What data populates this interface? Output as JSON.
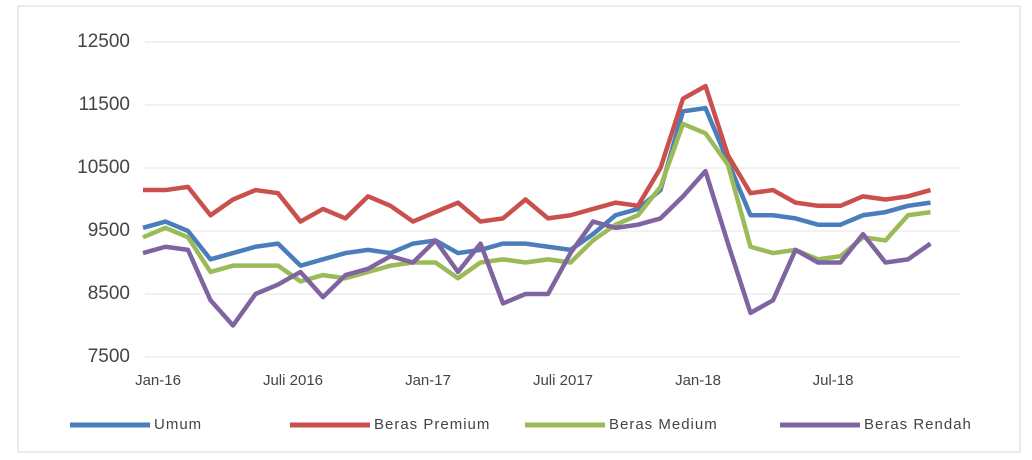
{
  "chart_data": {
    "type": "line",
    "categories": [
      "Jan-16",
      null,
      null,
      null,
      null,
      null,
      "Juli 2016",
      null,
      null,
      null,
      null,
      null,
      "Jan-17",
      null,
      null,
      null,
      null,
      null,
      "Juli 2017",
      null,
      null,
      null,
      null,
      null,
      "Jan-18",
      null,
      null,
      null,
      null,
      null,
      "Jul-18",
      null,
      null,
      null,
      null,
      null
    ],
    "series": [
      {
        "name": "Umum",
        "color": "#4a7ebb",
        "values": [
          9550,
          9650,
          9500,
          9050,
          9150,
          9250,
          9300,
          8950,
          9050,
          9150,
          9200,
          9150,
          9300,
          9350,
          9150,
          9200,
          9300,
          9300,
          9250,
          9200,
          9450,
          9750,
          9850,
          10150,
          11400,
          11450,
          10600,
          9750,
          9750,
          9700,
          9600,
          9600,
          9750,
          9800,
          9900,
          9950
        ]
      },
      {
        "name": "Beras Premium",
        "color": "#c9504c",
        "values": [
          10150,
          10150,
          10200,
          9750,
          10000,
          10150,
          10100,
          9650,
          9850,
          9700,
          10050,
          9900,
          9650,
          9800,
          9950,
          9650,
          9700,
          10000,
          9700,
          9750,
          9850,
          9950,
          9900,
          10500,
          11600,
          11800,
          10700,
          10100,
          10150,
          9950,
          9900,
          9900,
          10050,
          10000,
          10050,
          10150
        ]
      },
      {
        "name": "Beras Medium",
        "color": "#9bbb59",
        "values": [
          9400,
          9550,
          9400,
          8850,
          8950,
          8950,
          8950,
          8700,
          8800,
          8750,
          8850,
          8950,
          9000,
          9000,
          8750,
          9000,
          9050,
          9000,
          9050,
          9000,
          9350,
          9600,
          9750,
          10200,
          11200,
          11050,
          10550,
          9250,
          9150,
          9200,
          9050,
          9100,
          9400,
          9350,
          9750,
          9800
        ]
      },
      {
        "name": "Beras Rendah",
        "color": "#8064a2",
        "values": [
          9150,
          9250,
          9200,
          8400,
          8000,
          8500,
          8650,
          8850,
          8450,
          8800,
          8900,
          9100,
          9000,
          9350,
          8850,
          9300,
          8350,
          8500,
          8500,
          9150,
          9650,
          9550,
          9600,
          9700,
          10050,
          10450,
          9300,
          8200,
          8400,
          9200,
          9000,
          9000,
          9450,
          9000,
          9050,
          9300
        ]
      }
    ],
    "ylim": [
      7500,
      12500
    ],
    "yticks": [
      7500,
      8500,
      9500,
      10500,
      11500,
      12500
    ],
    "grid": true
  }
}
